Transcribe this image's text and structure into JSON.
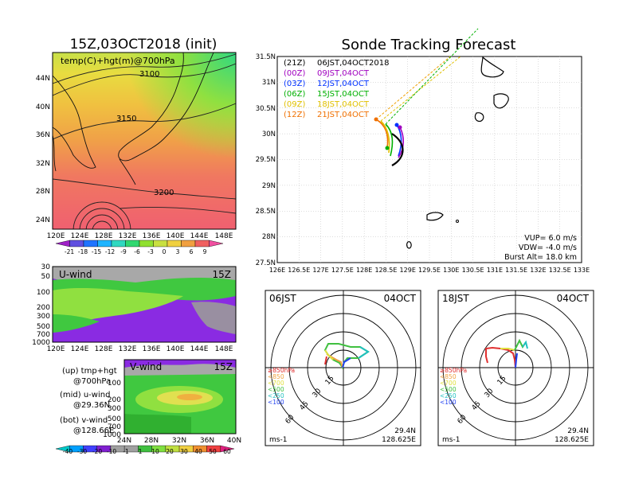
{
  "left": {
    "title": "15Z,03OCT2018 (init)",
    "top_panel": {
      "label": "temp(C)+hgt(m)@700hPa",
      "lat_ticks": [
        "44N",
        "40N",
        "36N",
        "32N",
        "28N",
        "24N"
      ],
      "lon_ticks": [
        "120E",
        "124E",
        "128E",
        "132E",
        "136E",
        "140E",
        "144E",
        "148E"
      ],
      "contour_labels": [
        "3100",
        "3150",
        "3200"
      ],
      "colorbar_ticks": [
        "-21",
        "-18",
        "-15",
        "-12",
        "-9",
        "-6",
        "-3",
        "0",
        "3",
        "6",
        "9"
      ],
      "colorbar_colors": [
        "#a020c8",
        "#6050e0",
        "#1e74ff",
        "#1eb4ff",
        "#30d8c0",
        "#30d870",
        "#90e030",
        "#c8e040",
        "#f0d040",
        "#f0a040",
        "#f06060",
        "#f050a0"
      ]
    },
    "mid_panel": {
      "label": "U-wind",
      "time": "15Z",
      "p_ticks": [
        "30",
        "50",
        "100",
        "200",
        "300",
        "500",
        "700",
        "1000"
      ],
      "lon_ticks": [
        "120E",
        "124E",
        "128E",
        "132E",
        "136E",
        "140E",
        "144E",
        "148E"
      ]
    },
    "bot_panel": {
      "label": "V-wind",
      "time": "15Z",
      "p_ticks": [
        "100",
        "200",
        "300",
        "500",
        "700",
        "1000"
      ],
      "lat_ticks": [
        "24N",
        "28N",
        "32N",
        "36N",
        "40N"
      ],
      "colorbar_ticks": [
        "-40",
        "-30",
        "-20",
        "-10",
        "-1",
        "1",
        "10",
        "20",
        "30",
        "40",
        "50",
        "60"
      ],
      "colorbar_colors": [
        "#00c8c8",
        "#00a0ff",
        "#4040ff",
        "#8020d0",
        "#a0a0a0",
        "#a0a0a0",
        "#40c040",
        "#80e040",
        "#c0e040",
        "#f0d040",
        "#f09030",
        "#f04040",
        "#e02080"
      ]
    },
    "legend": {
      "up": "(up) tmp+hgt",
      "up2": "@700hPa",
      "mid": "(mid) u-wind",
      "mid2": "@29.36N",
      "bot": "(bot) v-wind",
      "bot2": "@128.66E"
    }
  },
  "right": {
    "title": "Sonde Tracking Forecast",
    "map": {
      "lat_ticks": [
        "31.5N",
        "31N",
        "30.5N",
        "30N",
        "29.5N",
        "29N",
        "28.5N",
        "28N",
        "27.5N"
      ],
      "lon_ticks": [
        "126E",
        "126.5E",
        "127E",
        "127.5E",
        "128E",
        "128.5E",
        "129E",
        "129.5E",
        "130E",
        "130.5E",
        "131E",
        "131.5E",
        "132E",
        "132.5E",
        "133E"
      ],
      "legend": [
        {
          "tag": "(21Z)",
          "time": "06JST,04OCT2018",
          "color": "#000000"
        },
        {
          "tag": "(00Z)",
          "time": "09JST,04OCT",
          "color": "#a000c0"
        },
        {
          "tag": "(03Z)",
          "time": "12JST,04OCT",
          "color": "#0030ff"
        },
        {
          "tag": "(06Z)",
          "time": "15JST,04OCT",
          "color": "#00b000"
        },
        {
          "tag": "(09Z)",
          "time": "18JST,04OCT",
          "color": "#e0c000"
        },
        {
          "tag": "(12Z)",
          "time": "21JST,04OCT",
          "color": "#f07000"
        }
      ],
      "vup": "VUP=  6.0  m/s",
      "vdw": "VDW=  -4.0  m/s",
      "burst": "Burst Alt=  18.0  km"
    },
    "polar_left": {
      "time": "06JST",
      "date": "04OCT",
      "lat": "29.4N",
      "lon": "128.625E",
      "unit": "ms-1",
      "ring_labels": [
        "15",
        "30",
        "45",
        "60"
      ],
      "levels": [
        {
          "label": "≥850hPa",
          "color": "#e03030"
        },
        {
          "label": "<850",
          "color": "#f0a040"
        },
        {
          "label": "<700",
          "color": "#e0e040"
        },
        {
          "label": "<500",
          "color": "#40c040"
        },
        {
          "label": "<250",
          "color": "#20c0c0"
        },
        {
          "label": "<100",
          "color": "#2040f0"
        }
      ]
    },
    "polar_right": {
      "time": "18JST",
      "date": "04OCT",
      "lat": "29.4N",
      "lon": "128.625E",
      "unit": "ms-1",
      "ring_labels": [
        "15",
        "30",
        "45",
        "60"
      ],
      "levels": [
        {
          "label": "≥850hPa",
          "color": "#e03030"
        },
        {
          "label": "<850",
          "color": "#f0a040"
        },
        {
          "label": "<700",
          "color": "#e0e040"
        },
        {
          "label": "<500",
          "color": "#40c040"
        },
        {
          "label": "<250",
          "color": "#20c0c0"
        },
        {
          "label": "<100",
          "color": "#2040f0"
        }
      ]
    }
  }
}
